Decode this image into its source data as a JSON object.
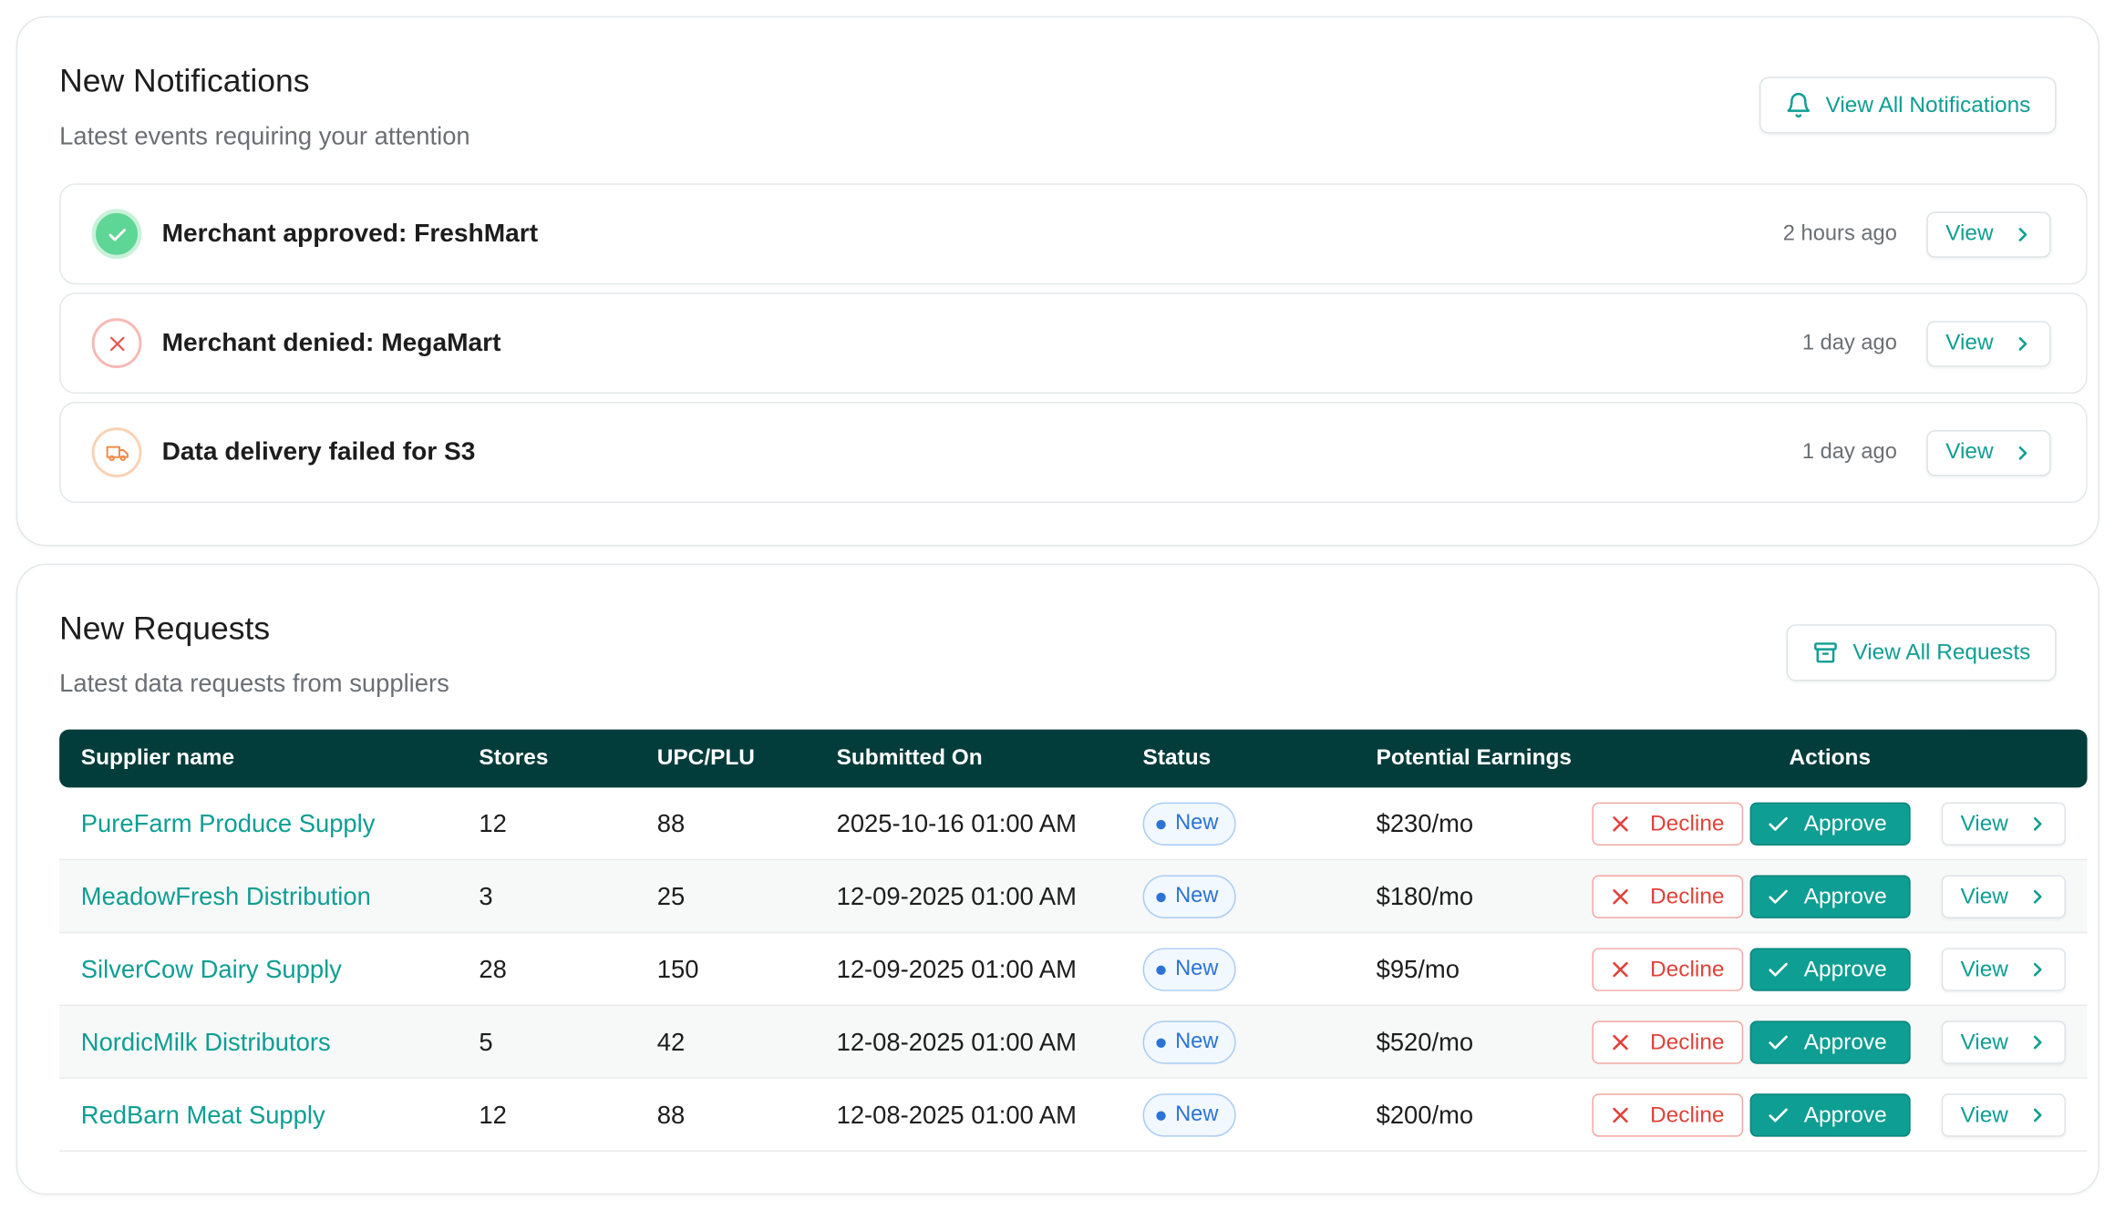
{
  "notifications": {
    "title": "New Notifications",
    "subtitle": "Latest events requiring your attention",
    "view_all_label": "View All Notifications",
    "items": [
      {
        "text": "Merchant approved: FreshMart",
        "time": "2 hours ago",
        "icon": "check-circle-icon",
        "view_label": "View"
      },
      {
        "text": "Merchant denied: MegaMart",
        "time": "1 day ago",
        "icon": "x-circle-icon",
        "view_label": "View"
      },
      {
        "text": "Data delivery failed for S3",
        "time": "1 day ago",
        "icon": "truck-icon",
        "view_label": "View"
      }
    ]
  },
  "requests": {
    "title": "New Requests",
    "subtitle": "Latest data requests from suppliers",
    "view_all_label": "View All Requests",
    "columns": [
      "Supplier name",
      "Stores",
      "UPC/PLU",
      "Submitted On",
      "Status",
      "Potential Earnings",
      "Actions"
    ],
    "rows": [
      {
        "supplier": "PureFarm Produce Supply",
        "stores": "12",
        "upc": "88",
        "submitted": "2025-10-16 01:00 AM",
        "status": "New",
        "earnings": "$230/mo"
      },
      {
        "supplier": "MeadowFresh Distribution",
        "stores": "3",
        "upc": "25",
        "submitted": "12-09-2025 01:00 AM",
        "status": "New",
        "earnings": "$180/mo"
      },
      {
        "supplier": "SilverCow Dairy Supply",
        "stores": "28",
        "upc": "150",
        "submitted": "12-09-2025 01:00 AM",
        "status": "New",
        "earnings": "$95/mo"
      },
      {
        "supplier": "NordicMilk Distributors",
        "stores": "5",
        "upc": "42",
        "submitted": "12-08-2025 01:00 AM",
        "status": "New",
        "earnings": "$520/mo"
      },
      {
        "supplier": "RedBarn Meat Supply",
        "stores": "12",
        "upc": "88",
        "submitted": "12-08-2025 01:00 AM",
        "status": "New",
        "earnings": "$200/mo"
      }
    ],
    "actions": {
      "decline": "Decline",
      "approve": "Approve",
      "view": "View"
    }
  },
  "colors": {
    "accent": "#0e9e93",
    "header_bg": "#033d3b",
    "decline": "#e0413a",
    "status": "#2d73d6"
  }
}
